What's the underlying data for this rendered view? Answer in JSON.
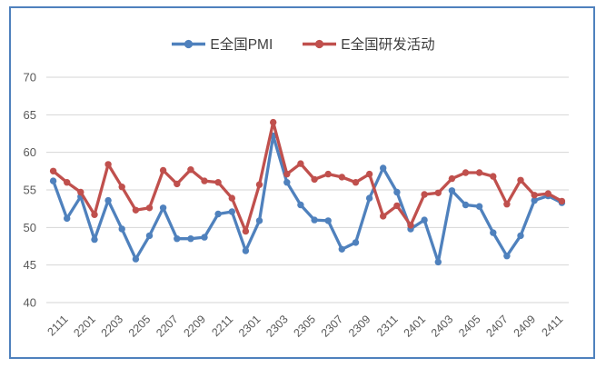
{
  "chart": {
    "border_color": "#4F81BD",
    "background": "#ffffff",
    "gridline_color": "#D6D6D6",
    "axis_label_color": "#595959",
    "legend_text_color": "#3D3D3D"
  },
  "chart_data": {
    "type": "line",
    "title": "",
    "xlabel": "",
    "ylabel": "",
    "grid": true,
    "legend_position": "top-center",
    "ylim": [
      40,
      70
    ],
    "y_ticks": [
      40,
      45,
      50,
      55,
      60,
      65,
      70
    ],
    "x": [
      "2111",
      "2112",
      "2201",
      "2202",
      "2203",
      "2204",
      "2205",
      "2206",
      "2207",
      "2208",
      "2209",
      "2210",
      "2211",
      "2212",
      "2301",
      "2302",
      "2303",
      "2304",
      "2305",
      "2306",
      "2307",
      "2308",
      "2309",
      "2310",
      "2311",
      "2312",
      "2401",
      "2402",
      "2403",
      "2404",
      "2405",
      "2406",
      "2407",
      "2408",
      "2409",
      "2410",
      "2411",
      "2412"
    ],
    "x_tick_labels_shown": [
      "2111",
      "2201",
      "2203",
      "2205",
      "2207",
      "2209",
      "2211",
      "2301",
      "2303",
      "2305",
      "2307",
      "2309",
      "2311",
      "2401",
      "2403",
      "2405",
      "2407",
      "2409",
      "2411"
    ],
    "x_tick_interval": 2,
    "series": [
      {
        "name": "E全国PMI",
        "color": "#4F81BD",
        "values": [
          56.2,
          51.2,
          54.1,
          48.4,
          53.6,
          49.8,
          45.8,
          48.9,
          52.6,
          48.5,
          48.5,
          48.7,
          51.8,
          52.1,
          46.9,
          50.9,
          62.2,
          56.0,
          53.0,
          51.0,
          50.9,
          47.1,
          48.0,
          53.9,
          57.9,
          54.7,
          49.8,
          51.0,
          45.4,
          54.9,
          53.0,
          52.8,
          49.3,
          46.2,
          48.9,
          53.6,
          54.2,
          53.3
        ]
      },
      {
        "name": "E全国研发活动",
        "color": "#C0504D",
        "values": [
          57.5,
          56.0,
          54.7,
          51.7,
          58.4,
          55.4,
          52.3,
          52.6,
          57.6,
          55.8,
          57.7,
          56.2,
          56.0,
          53.9,
          49.5,
          55.7,
          64.0,
          57.1,
          58.5,
          56.4,
          57.1,
          56.7,
          56.0,
          57.1,
          51.5,
          52.9,
          50.3,
          54.4,
          54.6,
          56.5,
          57.3,
          57.3,
          56.8,
          53.1,
          56.3,
          54.3,
          54.5,
          53.5
        ]
      }
    ]
  }
}
